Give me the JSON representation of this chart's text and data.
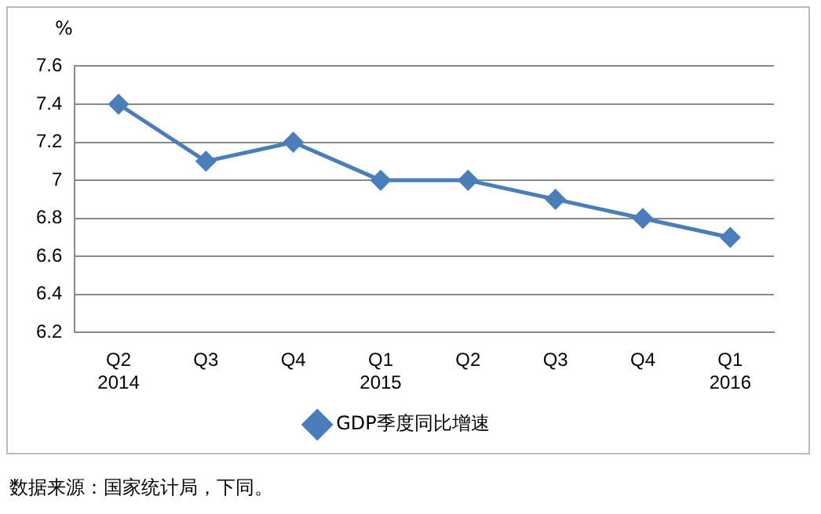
{
  "chart_data": {
    "type": "line",
    "ylabel": "%",
    "categories": [
      "Q2\n2014",
      "Q3",
      "Q4",
      "Q1\n2015",
      "Q2",
      "Q3",
      "Q4",
      "Q1\n2016"
    ],
    "series": [
      {
        "name": "GDP季度同比增速",
        "color": "#4a7ebb",
        "values": [
          7.4,
          7.1,
          7.2,
          7,
          7,
          6.9,
          6.8,
          6.7
        ]
      }
    ],
    "ylim": [
      6.2,
      7.6
    ],
    "yticks": [
      6.2,
      6.4,
      6.6,
      6.8,
      7,
      7.2,
      7.4,
      7.6
    ],
    "grid": "y",
    "legend": "bottom",
    "marker": "diamond",
    "line_style": "solid",
    "annotations": [
      "数据来源：国家统计局，下同。"
    ]
  }
}
